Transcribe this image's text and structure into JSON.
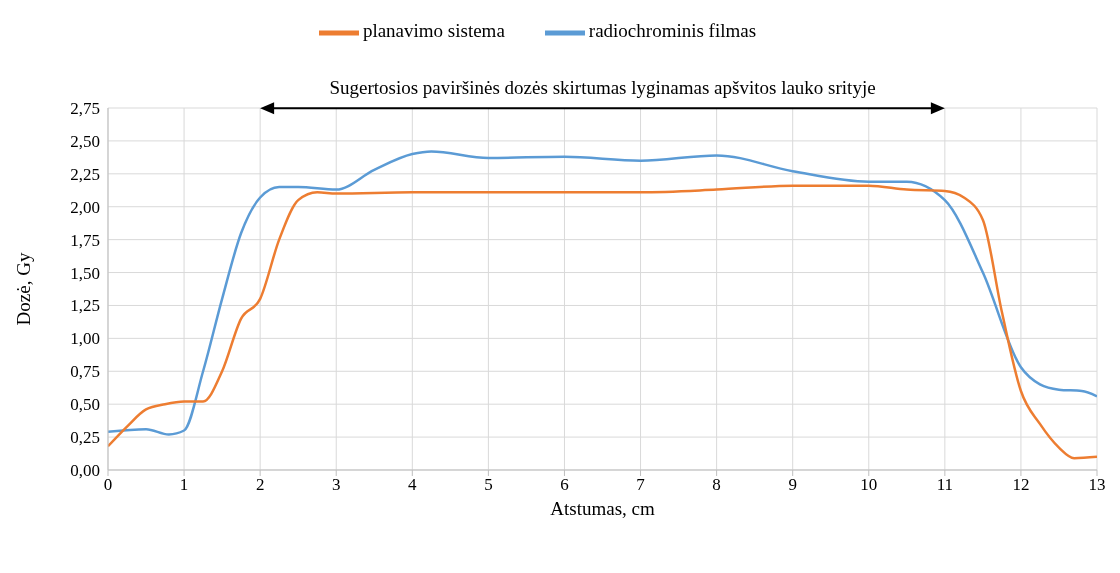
{
  "chart_data": {
    "type": "line",
    "xlabel": "Atstumas, cm",
    "ylabel": "Dozė, Gy",
    "annotations": [
      "Sugertosios paviršinės dozės skirtumas lyginamas apšvitos lauko srityje"
    ],
    "xlim": [
      0,
      13
    ],
    "xticks": [
      0,
      1,
      2,
      3,
      4,
      5,
      6,
      7,
      8,
      9,
      10,
      11,
      12,
      13
    ],
    "ylim": [
      0,
      2.75
    ],
    "yticks": [
      {
        "value": 0,
        "label": "0,00"
      },
      {
        "value": 0.25,
        "label": "0,25"
      },
      {
        "value": 0.5,
        "label": "0,50"
      },
      {
        "value": 0.75,
        "label": "0,75"
      },
      {
        "value": 1,
        "label": "1,00"
      },
      {
        "value": 1.25,
        "label": "1,25"
      },
      {
        "value": 1.5,
        "label": "1,50"
      },
      {
        "value": 1.75,
        "label": "1,75"
      },
      {
        "value": 2,
        "label": "2,00"
      },
      {
        "value": 2.25,
        "label": "2,25"
      },
      {
        "value": 2.5,
        "label": "2,50"
      },
      {
        "value": 2.75,
        "label": "2,75"
      }
    ],
    "grid": true,
    "legend": "top",
    "marker": "none",
    "line_style": "solid",
    "series": [
      {
        "name": "radiochrominis filmas",
        "color": "#5b9bd5",
        "x": [
          0,
          0.5,
          0.8,
          1,
          1.25,
          1.5,
          1.75,
          2,
          2.25,
          2.5,
          3,
          3.5,
          4,
          4.25,
          5,
          6,
          7,
          8,
          9,
          10,
          10.5,
          11,
          11.5,
          12,
          12.25,
          12.5,
          12.8,
          13
        ],
        "values": [
          0.29,
          0.31,
          0.27,
          0.3,
          0.75,
          1.3,
          1.8,
          2.07,
          2.15,
          2.15,
          2.13,
          2.28,
          2.4,
          2.42,
          2.37,
          2.38,
          2.35,
          2.39,
          2.27,
          2.19,
          2.19,
          2.05,
          1.5,
          0.78,
          0.65,
          0.61,
          0.6,
          0.56
        ]
      },
      {
        "name": "planavimo sistema",
        "color": "#ed7d31",
        "x": [
          0,
          0.25,
          0.5,
          0.75,
          1,
          1.25,
          1.5,
          1.75,
          2,
          2.25,
          2.5,
          2.75,
          3,
          4,
          7,
          8,
          9,
          10,
          10.5,
          11,
          11.25,
          11.5,
          11.75,
          12,
          12.25,
          12.5,
          12.7,
          13
        ],
        "values": [
          0.18,
          0.33,
          0.46,
          0.5,
          0.52,
          0.52,
          0.75,
          1.15,
          1.3,
          1.75,
          2.05,
          2.11,
          2.1,
          2.11,
          2.11,
          2.13,
          2.16,
          2.16,
          2.13,
          2.12,
          2.07,
          1.9,
          1.2,
          0.6,
          0.35,
          0.17,
          0.09,
          0.1
        ]
      }
    ]
  }
}
